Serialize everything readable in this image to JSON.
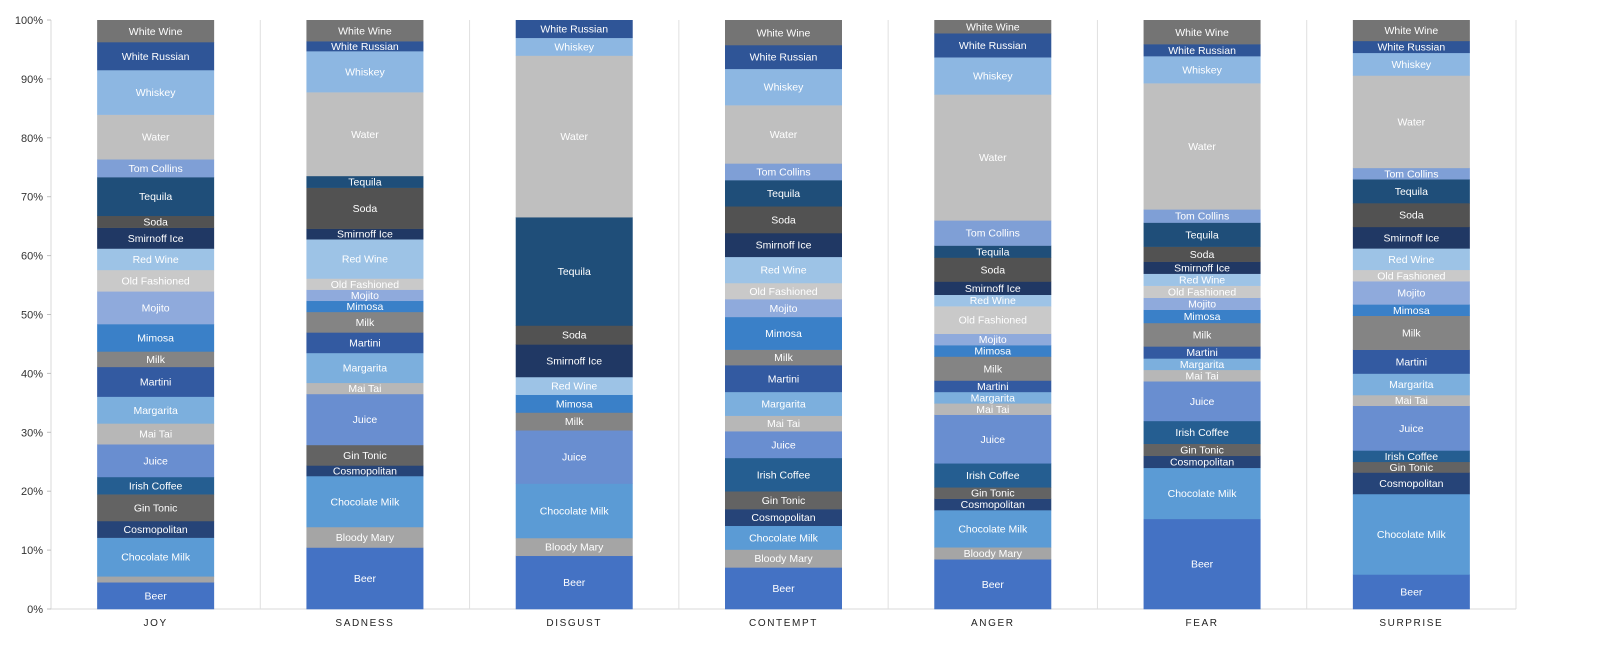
{
  "chart_data": {
    "type": "bar",
    "stacked": true,
    "normalized": true,
    "categories": [
      "JOY",
      "SADNESS",
      "DISGUST",
      "CONTEMPT",
      "ANGER",
      "FEAR",
      "SURPRISE"
    ],
    "yticks": [
      "0%",
      "10%",
      "20%",
      "30%",
      "40%",
      "50%",
      "60%",
      "70%",
      "80%",
      "90%",
      "100%"
    ],
    "ylim": [
      0,
      100
    ],
    "grid": true,
    "legend": "none (segments labeled inline)",
    "series": [
      {
        "name": "Beer",
        "color": "#4472c4",
        "values": [
          4.5,
          10.5,
          9,
          7,
          8.3,
          15,
          5.8
        ]
      },
      {
        "name": "Bloody Mary",
        "color": "#a5a5a5",
        "values": [
          1,
          3.5,
          3,
          3,
          2,
          0,
          0
        ]
      },
      {
        "name": "Chocolate Milk",
        "color": "#5b9bd5",
        "values": [
          6.5,
          8.7,
          9.2,
          4,
          6.2,
          8.5,
          13.5
        ]
      },
      {
        "name": "Cosmopolitan",
        "color": "#264478",
        "values": [
          2.8,
          1.8,
          0,
          2.8,
          1.9,
          2,
          3.6
        ]
      },
      {
        "name": "Gin Tonic",
        "color": "#636363",
        "values": [
          4.5,
          3.5,
          0,
          3,
          1.9,
          2,
          1.8
        ]
      },
      {
        "name": "Irish Coffee",
        "color": "#255e91",
        "values": [
          2.9,
          0,
          0,
          5.6,
          4,
          3.8,
          1.9
        ]
      },
      {
        "name": "Juice",
        "color": "#698ed0",
        "values": [
          5.5,
          8.7,
          9,
          4.5,
          8.1,
          6.6,
          7.5
        ]
      },
      {
        "name": "Mai Tai",
        "color": "#b7b7b7",
        "values": [
          3.5,
          1.9,
          0,
          2.6,
          1.9,
          1.9,
          1.8
        ]
      },
      {
        "name": "Margarita",
        "color": "#7cafdd",
        "values": [
          4.5,
          5.1,
          0,
          4,
          1.9,
          1.9,
          3.6
        ]
      },
      {
        "name": "Martini",
        "color": "#335aa1",
        "values": [
          5,
          3.5,
          0,
          4.5,
          1.9,
          2,
          4
        ]
      },
      {
        "name": "Milk",
        "color": "#848484",
        "values": [
          2.6,
          3.5,
          3,
          2.6,
          4,
          3.9,
          5.7
        ]
      },
      {
        "name": "Mimosa",
        "color": "#3a80c8",
        "values": [
          4.6,
          1.9,
          3,
          5.5,
          1.9,
          2.2,
          1.9
        ]
      },
      {
        "name": "Mojito",
        "color": "#8faadc",
        "values": [
          5.5,
          1.9,
          0,
          3,
          1.9,
          2,
          3.9
        ]
      },
      {
        "name": "Old Fashioned",
        "color": "#c9c9c9",
        "values": [
          3.6,
          1.9,
          0,
          2.7,
          4.6,
          2,
          1.9
        ]
      },
      {
        "name": "Red Wine",
        "color": "#9dc3e6",
        "values": [
          3.6,
          6.7,
          3,
          4.4,
          1.9,
          2,
          3.6
        ]
      },
      {
        "name": "Smirnoff Ice",
        "color": "#203864",
        "values": [
          3.5,
          1.8,
          5.5,
          4,
          2.2,
          2,
          3.6
        ]
      },
      {
        "name": "Soda",
        "color": "#525252",
        "values": [
          2,
          7,
          3.2,
          4.5,
          4,
          2.5,
          4
        ]
      },
      {
        "name": "Tequila",
        "color": "#1f4e79",
        "values": [
          6.5,
          2,
          18.3,
          4.4,
          2,
          4,
          4
        ]
      },
      {
        "name": "Tom Collins",
        "color": "#7f9fd6",
        "values": [
          3,
          0,
          0,
          2.8,
          4.2,
          2.2,
          1.9
        ]
      },
      {
        "name": "Water",
        "color": "#bfbfbf",
        "values": [
          7.5,
          14.3,
          27.3,
          9.8,
          21,
          21,
          15.5
        ]
      },
      {
        "name": "Whiskey",
        "color": "#8db7e2",
        "values": [
          7.5,
          7,
          3,
          6.1,
          6.2,
          4.5,
          3.8
        ]
      },
      {
        "name": "White Russian",
        "color": "#2f5597",
        "values": [
          4.7,
          1.7,
          3,
          4,
          4,
          2,
          2
        ]
      },
      {
        "name": "White Wine",
        "color": "#747474",
        "values": [
          3.7,
          3.6,
          0,
          4.2,
          2.2,
          4,
          3.5
        ]
      }
    ]
  }
}
